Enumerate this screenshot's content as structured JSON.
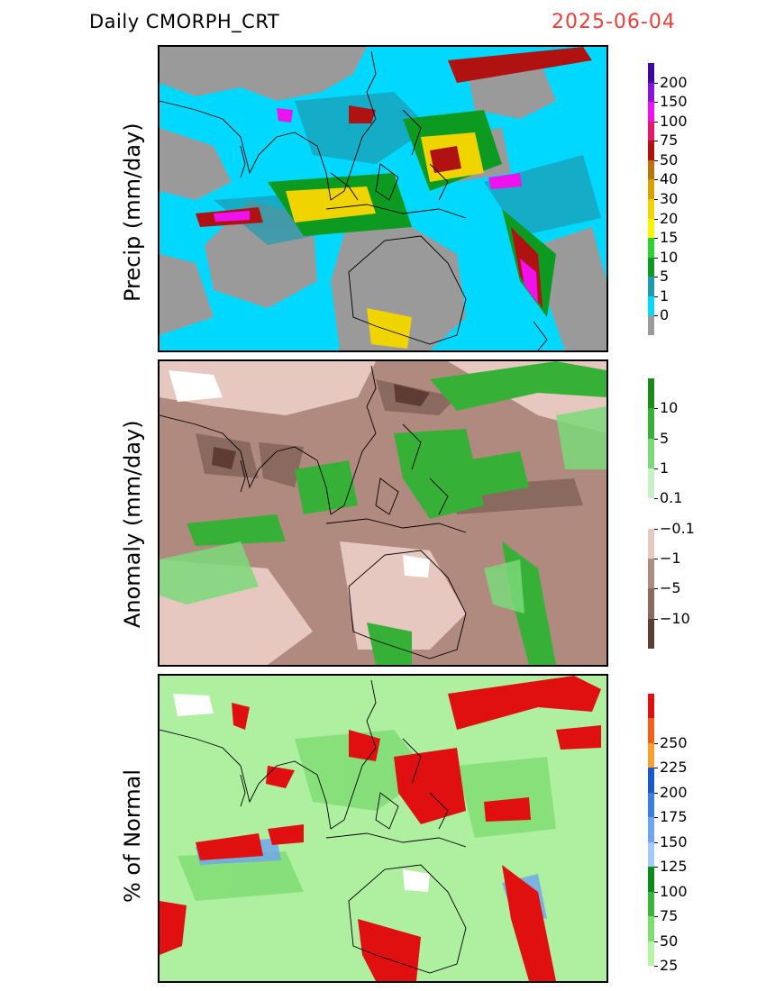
{
  "header": {
    "product": "Daily  CMORPH_CRT",
    "date": "2025-06-04"
  },
  "panels": [
    {
      "id": "precip",
      "ylabel": "Precip  (mm/day)",
      "background": "#9a9a9a",
      "colorbar": [
        {
          "label": "200",
          "color": "#3a0aa0"
        },
        {
          "label": "150",
          "color": "#8a12d8"
        },
        {
          "label": "100",
          "color": "#ee12ee"
        },
        {
          "label": "75",
          "color": "#e8176a"
        },
        {
          "label": "50",
          "color": "#b01212"
        },
        {
          "label": "40",
          "color": "#b8720e"
        },
        {
          "label": "30",
          "color": "#d8a000"
        },
        {
          "label": "20",
          "color": "#f0d400"
        },
        {
          "label": "15",
          "color": "#f8f400"
        },
        {
          "label": "10",
          "color": "#30d030"
        },
        {
          "label": "5",
          "color": "#0c9a20"
        },
        {
          "label": "1",
          "color": "#1e9ab0"
        },
        {
          "label": "0",
          "color": "#00d8ff"
        },
        {
          "label": "",
          "color": "#9a9a9a"
        }
      ]
    },
    {
      "id": "anomaly",
      "ylabel": "Anomaly  (mm/day)",
      "background": "#b08a7e",
      "colorbar": [
        {
          "label": "10",
          "color": "#1a8a1a"
        },
        {
          "label": "5",
          "color": "#36b036"
        },
        {
          "label": "1",
          "color": "#7ad97a"
        },
        {
          "label": "0.1",
          "color": "#c6f0c6"
        },
        {
          "label": "−0.1",
          "color": "#ffffff"
        },
        {
          "label": "−1",
          "color": "#e6c8c0"
        },
        {
          "label": "−5",
          "color": "#b08a7e"
        },
        {
          "label": "−10",
          "color": "#8a6a5e"
        },
        {
          "label": "",
          "color": "#5e3c34"
        }
      ]
    },
    {
      "id": "percent",
      "ylabel": "%  of  Normal",
      "background": "#aef0a0",
      "colorbar": [
        {
          "label": "",
          "color": "#e01010"
        },
        {
          "label": "250",
          "color": "#f06018"
        },
        {
          "label": "225",
          "color": "#f8a030"
        },
        {
          "label": "200",
          "color": "#1a5ac8"
        },
        {
          "label": "175",
          "color": "#3a7ee0"
        },
        {
          "label": "150",
          "color": "#6ea4f0"
        },
        {
          "label": "125",
          "color": "#a6c8f8"
        },
        {
          "label": "100",
          "color": "#0a8a1a"
        },
        {
          "label": "75",
          "color": "#3ab43a"
        },
        {
          "label": "50",
          "color": "#7edc72"
        },
        {
          "label": "25",
          "color": "#b6f4aa"
        }
      ]
    }
  ]
}
